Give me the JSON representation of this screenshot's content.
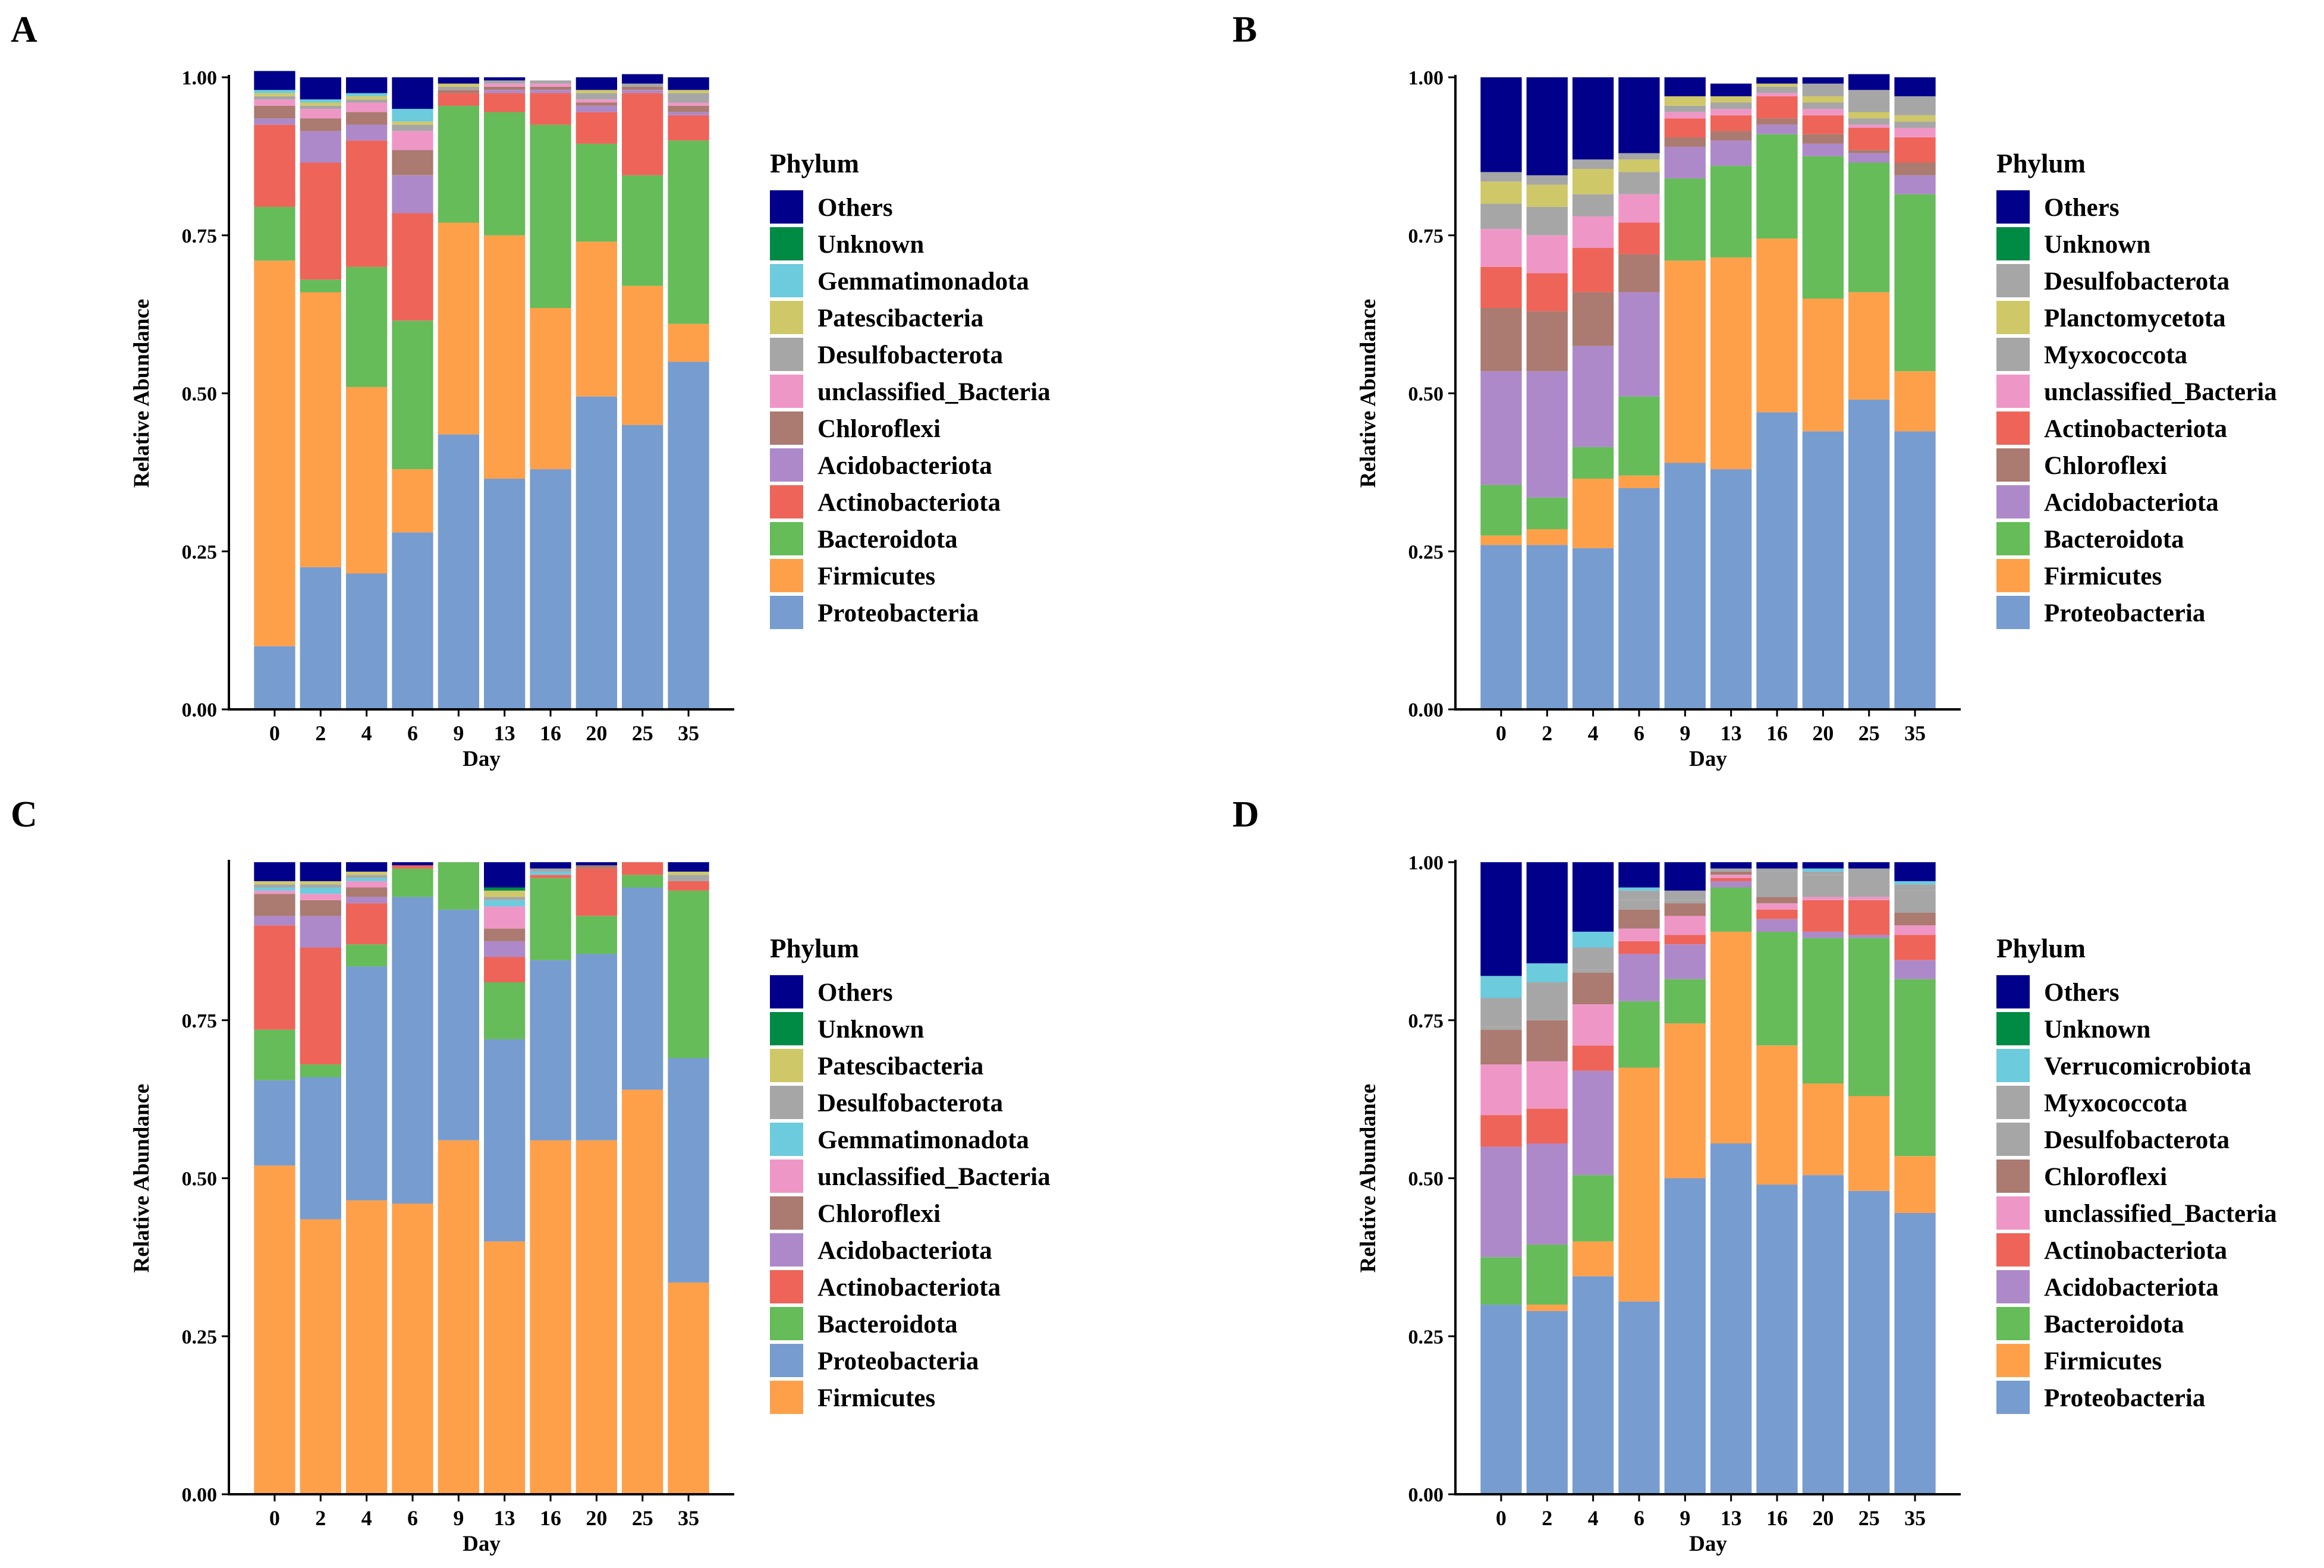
{
  "figure": {
    "colors": {
      "Others": "#00008b",
      "Unknown": "#008b45",
      "Gemmatimonadota": "#6ccbdc",
      "Patescibacteria": "#cfc868",
      "Desulfobacterota": "#a6a6a6",
      "Planctomycetota": "#cfc868",
      "Myxococcota": "#a6a6a6",
      "Verrucomicrobiota": "#6ccbdc",
      "unclassified_Bacteria": "#ee97c7",
      "Chloroflexi": "#ab7a70",
      "Acidobacteriota": "#ad89c9",
      "Actinobacteriota": "#ee6459",
      "Bacteroidota": "#65bc59",
      "Firmicutes": "#fea04a",
      "Proteobacteria": "#779ccf"
    }
  },
  "chart_data": [
    {
      "panel": "A",
      "type": "bar",
      "stacked": true,
      "xlabel": "Day",
      "ylabel": "Relative Abundance",
      "ylim": [
        0,
        1
      ],
      "yticks": [
        "0.00",
        "0.25",
        "0.50",
        "0.75",
        "1.00"
      ],
      "categories": [
        "0",
        "2",
        "4",
        "6",
        "9",
        "13",
        "16",
        "20",
        "25",
        "35"
      ],
      "legend_title": "Phylum",
      "series": [
        {
          "name": "Proteobacteria",
          "values": [
            0.1,
            0.225,
            0.215,
            0.28,
            0.435,
            0.365,
            0.38,
            0.495,
            0.45,
            0.55
          ]
        },
        {
          "name": "Firmicutes",
          "values": [
            0.61,
            0.435,
            0.295,
            0.1,
            0.335,
            0.385,
            0.255,
            0.245,
            0.22,
            0.06
          ]
        },
        {
          "name": "Bacteroidota",
          "values": [
            0.085,
            0.02,
            0.19,
            0.235,
            0.185,
            0.195,
            0.29,
            0.155,
            0.175,
            0.29
          ]
        },
        {
          "name": "Actinobacteriota",
          "values": [
            0.13,
            0.185,
            0.2,
            0.17,
            0.02,
            0.03,
            0.05,
            0.05,
            0.13,
            0.04
          ]
        },
        {
          "name": "Acidobacteriota",
          "values": [
            0.01,
            0.05,
            0.025,
            0.06,
            0.0,
            0.005,
            0.005,
            0.01,
            0.005,
            0.005
          ]
        },
        {
          "name": "Chloroflexi",
          "values": [
            0.02,
            0.02,
            0.02,
            0.04,
            0.005,
            0.005,
            0.005,
            0.005,
            0.005,
            0.01
          ]
        },
        {
          "name": "unclassified_Bacteria",
          "values": [
            0.01,
            0.015,
            0.015,
            0.03,
            0.0,
            0.005,
            0.005,
            0.005,
            0.0,
            0.005
          ]
        },
        {
          "name": "Desulfobacterota",
          "values": [
            0.005,
            0.005,
            0.005,
            0.01,
            0.005,
            0.005,
            0.005,
            0.01,
            0.005,
            0.015
          ]
        },
        {
          "name": "Patescibacteria",
          "values": [
            0.005,
            0.005,
            0.005,
            0.005,
            0.005,
            0.0,
            0.0,
            0.005,
            0.0,
            0.005
          ]
        },
        {
          "name": "Gemmatimonadota",
          "values": [
            0.005,
            0.005,
            0.005,
            0.02,
            0.0,
            0.0,
            0.0,
            0.0,
            0.0,
            0.0
          ]
        },
        {
          "name": "Unknown",
          "values": [
            0.0,
            0.0,
            0.0,
            0.0,
            0.0,
            0.0,
            0.0,
            0.0,
            0.0,
            0.0
          ]
        },
        {
          "name": "Others",
          "values": [
            0.03,
            0.035,
            0.025,
            0.05,
            0.01,
            0.005,
            0.0,
            0.02,
            0.015,
            0.02
          ]
        }
      ],
      "legend": [
        "Others",
        "Unknown",
        "Gemmatimonadota",
        "Patescibacteria",
        "Desulfobacterota",
        "unclassified_Bacteria",
        "Chloroflexi",
        "Acidobacteriota",
        "Actinobacteriota",
        "Bacteroidota",
        "Firmicutes",
        "Proteobacteria"
      ]
    },
    {
      "panel": "B",
      "type": "bar",
      "stacked": true,
      "xlabel": "Day",
      "ylabel": "Relative Abundance",
      "ylim": [
        0,
        1
      ],
      "yticks": [
        "0.00",
        "0.25",
        "0.50",
        "0.75",
        "1.00"
      ],
      "categories": [
        "0",
        "2",
        "4",
        "6",
        "9",
        "13",
        "16",
        "20",
        "25",
        "35"
      ],
      "legend_title": "Phylum",
      "series": [
        {
          "name": "Proteobacteria",
          "values": [
            0.26,
            0.26,
            0.255,
            0.35,
            0.39,
            0.38,
            0.47,
            0.44,
            0.49,
            0.44
          ]
        },
        {
          "name": "Firmicutes",
          "values": [
            0.015,
            0.025,
            0.11,
            0.02,
            0.32,
            0.335,
            0.275,
            0.21,
            0.17,
            0.095
          ]
        },
        {
          "name": "Bacteroidota",
          "values": [
            0.08,
            0.05,
            0.05,
            0.125,
            0.13,
            0.145,
            0.165,
            0.225,
            0.205,
            0.28
          ]
        },
        {
          "name": "Acidobacteriota",
          "values": [
            0.18,
            0.2,
            0.16,
            0.165,
            0.05,
            0.04,
            0.015,
            0.02,
            0.015,
            0.03
          ]
        },
        {
          "name": "Chloroflexi",
          "values": [
            0.1,
            0.095,
            0.085,
            0.06,
            0.015,
            0.015,
            0.01,
            0.015,
            0.005,
            0.02
          ]
        },
        {
          "name": "Actinobacteriota",
          "values": [
            0.065,
            0.06,
            0.07,
            0.05,
            0.03,
            0.025,
            0.035,
            0.03,
            0.035,
            0.04
          ]
        },
        {
          "name": "unclassified_Bacteria",
          "values": [
            0.06,
            0.06,
            0.05,
            0.045,
            0.01,
            0.01,
            0.005,
            0.01,
            0.005,
            0.015
          ]
        },
        {
          "name": "Myxococcota",
          "values": [
            0.04,
            0.045,
            0.035,
            0.035,
            0.01,
            0.01,
            0.01,
            0.01,
            0.01,
            0.01
          ]
        },
        {
          "name": "Planctomycetota",
          "values": [
            0.035,
            0.035,
            0.04,
            0.02,
            0.015,
            0.01,
            0.005,
            0.01,
            0.01,
            0.01
          ]
        },
        {
          "name": "Desulfobacterota",
          "values": [
            0.015,
            0.015,
            0.015,
            0.01,
            0.0,
            0.0,
            0.0,
            0.02,
            0.035,
            0.03
          ]
        },
        {
          "name": "Unknown",
          "values": [
            0.0,
            0.0,
            0.0,
            0.0,
            0.0,
            0.0,
            0.0,
            0.0,
            0.0,
            0.0
          ]
        },
        {
          "name": "Others",
          "values": [
            0.15,
            0.155,
            0.13,
            0.12,
            0.03,
            0.02,
            0.01,
            0.01,
            0.025,
            0.03
          ]
        }
      ],
      "legend": [
        "Others",
        "Unknown",
        "Desulfobacterota",
        "Planctomycetota",
        "Myxococcota",
        "unclassified_Bacteria",
        "Actinobacteriota",
        "Chloroflexi",
        "Acidobacteriota",
        "Bacteroidota",
        "Firmicutes",
        "Proteobacteria"
      ]
    },
    {
      "panel": "C",
      "type": "bar",
      "stacked": true,
      "xlabel": "Day",
      "ylabel": "Relative Abundance",
      "ylim": [
        0,
        1
      ],
      "yticks": [
        "0.00",
        "0.25",
        "0.50",
        "0.75"
      ],
      "categories": [
        "0",
        "2",
        "4",
        "6",
        "9",
        "13",
        "16",
        "20",
        "25",
        "35"
      ],
      "legend_title": "Phylum",
      "series": [
        {
          "name": "Firmicutes",
          "values": [
            0.52,
            0.435,
            0.465,
            0.46,
            0.56,
            0.4,
            0.56,
            0.56,
            0.64,
            0.335
          ]
        },
        {
          "name": "Proteobacteria",
          "values": [
            0.135,
            0.225,
            0.37,
            0.485,
            0.365,
            0.32,
            0.285,
            0.295,
            0.32,
            0.355
          ]
        },
        {
          "name": "Bacteroidota",
          "values": [
            0.08,
            0.02,
            0.035,
            0.045,
            0.075,
            0.09,
            0.13,
            0.06,
            0.02,
            0.265
          ]
        },
        {
          "name": "Actinobacteriota",
          "values": [
            0.165,
            0.185,
            0.065,
            0.005,
            0.0,
            0.04,
            0.005,
            0.075,
            0.02,
            0.015
          ]
        },
        {
          "name": "Acidobacteriota",
          "values": [
            0.015,
            0.05,
            0.01,
            0.0,
            0.0,
            0.025,
            0.0,
            0.0,
            0.0,
            0.0
          ]
        },
        {
          "name": "Chloroflexi",
          "values": [
            0.035,
            0.025,
            0.015,
            0.0,
            0.0,
            0.02,
            0.0,
            0.005,
            0.0,
            0.0
          ]
        },
        {
          "name": "unclassified_Bacteria",
          "values": [
            0.005,
            0.01,
            0.01,
            0.0,
            0.0,
            0.035,
            0.0,
            0.0,
            0.0,
            0.0
          ]
        },
        {
          "name": "Gemmatimonadota",
          "values": [
            0.005,
            0.01,
            0.005,
            0.0,
            0.0,
            0.01,
            0.005,
            0.0,
            0.0,
            0.0
          ]
        },
        {
          "name": "Desulfobacterota",
          "values": [
            0.005,
            0.005,
            0.005,
            0.0,
            0.0,
            0.005,
            0.005,
            0.0,
            0.0,
            0.01
          ]
        },
        {
          "name": "Patescibacteria",
          "values": [
            0.005,
            0.005,
            0.005,
            0.0,
            0.0,
            0.01,
            0.0,
            0.0,
            0.0,
            0.005
          ]
        },
        {
          "name": "Unknown",
          "values": [
            0.0,
            0.0,
            0.0,
            0.0,
            0.0,
            0.005,
            0.0,
            0.0,
            0.0,
            0.0
          ]
        },
        {
          "name": "Others",
          "values": [
            0.03,
            0.03,
            0.015,
            0.005,
            0.0,
            0.04,
            0.01,
            0.005,
            0.0,
            0.015
          ]
        }
      ],
      "legend": [
        "Others",
        "Unknown",
        "Patescibacteria",
        "Desulfobacterota",
        "Gemmatimonadota",
        "unclassified_Bacteria",
        "Chloroflexi",
        "Acidobacteriota",
        "Actinobacteriota",
        "Bacteroidota",
        "Proteobacteria",
        "Firmicutes"
      ]
    },
    {
      "panel": "D",
      "type": "bar",
      "stacked": true,
      "xlabel": "Day",
      "ylabel": "Relative Abundance",
      "ylim": [
        0,
        1
      ],
      "yticks": [
        "0.00",
        "0.25",
        "0.50",
        "0.75",
        "1.00"
      ],
      "categories": [
        "0",
        "2",
        "4",
        "6",
        "9",
        "13",
        "16",
        "20",
        "25",
        "35"
      ],
      "legend_title": "Phylum",
      "series": [
        {
          "name": "Proteobacteria",
          "values": [
            0.3,
            0.29,
            0.345,
            0.305,
            0.5,
            0.555,
            0.49,
            0.505,
            0.48,
            0.445
          ]
        },
        {
          "name": "Firmicutes",
          "values": [
            0.0,
            0.01,
            0.055,
            0.37,
            0.245,
            0.335,
            0.22,
            0.145,
            0.15,
            0.09
          ]
        },
        {
          "name": "Bacteroidota",
          "values": [
            0.075,
            0.095,
            0.105,
            0.105,
            0.07,
            0.07,
            0.18,
            0.23,
            0.25,
            0.28
          ]
        },
        {
          "name": "Acidobacteriota",
          "values": [
            0.175,
            0.16,
            0.165,
            0.075,
            0.055,
            0.01,
            0.02,
            0.01,
            0.005,
            0.03
          ]
        },
        {
          "name": "Actinobacteriota",
          "values": [
            0.05,
            0.055,
            0.04,
            0.02,
            0.015,
            0.005,
            0.015,
            0.05,
            0.055,
            0.04
          ]
        },
        {
          "name": "unclassified_Bacteria",
          "values": [
            0.08,
            0.075,
            0.065,
            0.02,
            0.03,
            0.005,
            0.01,
            0.005,
            0.005,
            0.015
          ]
        },
        {
          "name": "Chloroflexi",
          "values": [
            0.055,
            0.065,
            0.05,
            0.03,
            0.02,
            0.005,
            0.01,
            0.0,
            0.0,
            0.02
          ]
        },
        {
          "name": "Desulfobacterota",
          "values": [
            0.005,
            0.005,
            0.005,
            0.015,
            0.005,
            0.005,
            0.04,
            0.035,
            0.045,
            0.035
          ]
        },
        {
          "name": "Myxococcota",
          "values": [
            0.045,
            0.055,
            0.035,
            0.015,
            0.015,
            0.0,
            0.005,
            0.005,
            0.0,
            0.01
          ]
        },
        {
          "name": "Verrucomicrobiota",
          "values": [
            0.035,
            0.03,
            0.025,
            0.005,
            0.0,
            0.0,
            0.0,
            0.005,
            0.0,
            0.005
          ]
        },
        {
          "name": "Unknown",
          "values": [
            0.0,
            0.0,
            0.0,
            0.0,
            0.0,
            0.0,
            0.0,
            0.0,
            0.0,
            0.0
          ]
        },
        {
          "name": "Others",
          "values": [
            0.18,
            0.16,
            0.11,
            0.04,
            0.045,
            0.01,
            0.01,
            0.01,
            0.01,
            0.03
          ]
        }
      ],
      "legend": [
        "Others",
        "Unknown",
        "Verrucomicrobiota",
        "Myxococcota",
        "Desulfobacterota",
        "Chloroflexi",
        "unclassified_Bacteria",
        "Actinobacteriota",
        "Acidobacteriota",
        "Bacteroidota",
        "Firmicutes",
        "Proteobacteria"
      ]
    }
  ]
}
